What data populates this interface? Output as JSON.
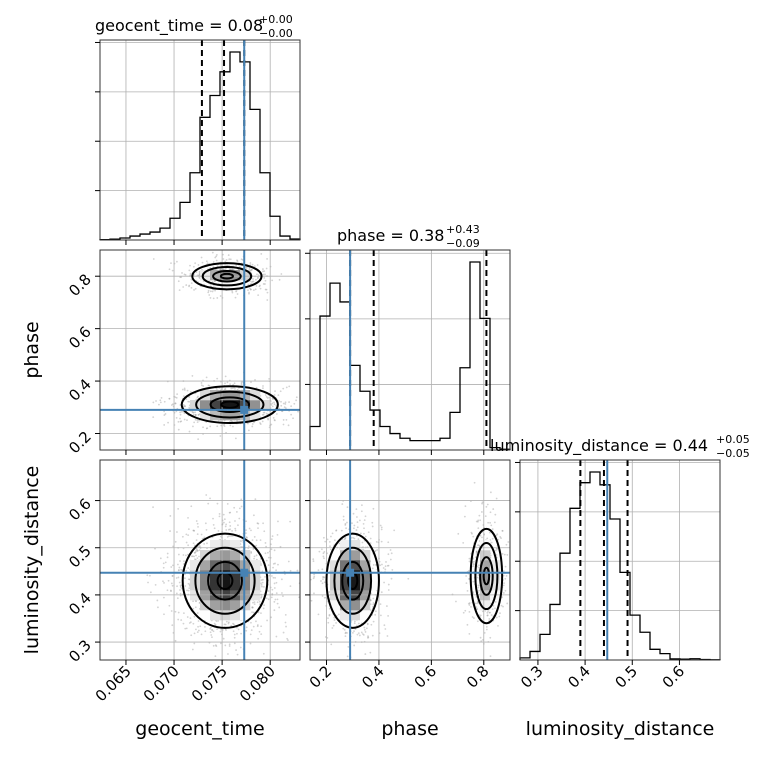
{
  "chart_data": {
    "type": "corner",
    "parameters": [
      "geocent_time",
      "phase",
      "luminosity_distance"
    ],
    "ranges": {
      "geocent_time": [
        0.0623,
        0.0831
      ],
      "phase": [
        0.137,
        0.9
      ],
      "luminosity_distance": [
        0.262,
        0.686
      ]
    },
    "truth": {
      "geocent_time": 0.0773,
      "phase": 0.29,
      "luminosity_distance": 0.447
    },
    "quantiles": {
      "geocent_time": [
        0.0729,
        0.0752,
        0.0773
      ],
      "phase": [
        0.29,
        0.38,
        0.81
      ],
      "luminosity_distance": [
        0.39,
        0.44,
        0.49
      ]
    },
    "titles": {
      "geocent_time": {
        "param": "geocent_time",
        "median": "0.08",
        "plus": "+0.00",
        "minus": "−0.00"
      },
      "phase": {
        "param": "phase",
        "median": "0.38",
        "plus": "+0.43",
        "minus": "−0.09"
      },
      "luminosity_distance": {
        "param": "luminosity_distance",
        "median": "0.44",
        "plus": "+0.05",
        "minus": "−0.05"
      }
    },
    "ticks": {
      "geocent_time": [
        0.065,
        0.07,
        0.075,
        0.08
      ],
      "phase": [
        0.2,
        0.4,
        0.6,
        0.8
      ],
      "luminosity_distance": [
        0.3,
        0.4,
        0.5,
        0.6
      ]
    },
    "tick_labels": {
      "geocent_time": [
        "0.065",
        "0.070",
        "0.075",
        "0.080"
      ],
      "phase_x": [
        "0.2",
        "0.4",
        "0.6",
        "0.8"
      ],
      "phase_y": [
        "0.2",
        "0.4",
        "0.6",
        "0.8"
      ],
      "luminosity_distance_x": [
        "0.3",
        "0.4",
        "0.5",
        "0.6"
      ],
      "luminosity_distance_y": [
        "0.3",
        "0.4",
        "0.5",
        "0.6"
      ]
    },
    "histograms": {
      "geocent_time": {
        "bins": 20,
        "counts": [
          0.002,
          0.004,
          0.01,
          0.02,
          0.03,
          0.04,
          0.06,
          0.11,
          0.19,
          0.34,
          0.62,
          0.73,
          0.85,
          0.95,
          0.9,
          0.66,
          0.34,
          0.12,
          0.02,
          0.005
        ]
      },
      "phase": {
        "bins": 20,
        "counts": [
          0.1,
          0.57,
          0.71,
          0.63,
          0.36,
          0.25,
          0.17,
          0.1,
          0.07,
          0.05,
          0.04,
          0.04,
          0.04,
          0.05,
          0.16,
          0.35,
          0.8,
          0.56,
          0.01,
          0.003
        ]
      },
      "luminosity_distance": {
        "bins": 20,
        "counts": [
          0.01,
          0.04,
          0.12,
          0.26,
          0.5,
          0.71,
          0.83,
          0.88,
          0.82,
          0.66,
          0.41,
          0.21,
          0.13,
          0.05,
          0.03,
          0.005,
          0.004,
          0.006,
          0.002,
          0.001
        ]
      }
    },
    "density_2d": {
      "phase_vs_geocent_time": {
        "modes": [
          {
            "x": 0.0755,
            "y": 0.8,
            "sx": 0.0018,
            "sy": 0.025,
            "weight": 0.35
          },
          {
            "x": 0.0758,
            "y": 0.31,
            "sx": 0.0025,
            "sy": 0.035,
            "weight": 0.55
          }
        ]
      },
      "luminosity_distance_vs_geocent_time": {
        "modes": [
          {
            "x": 0.0753,
            "y": 0.43,
            "sx": 0.0022,
            "sy": 0.05,
            "weight": 1.0
          }
        ]
      },
      "luminosity_distance_vs_phase": {
        "modes": [
          {
            "x": 0.3,
            "y": 0.43,
            "sx": 0.05,
            "sy": 0.05,
            "weight": 0.6
          },
          {
            "x": 0.81,
            "y": 0.44,
            "sx": 0.03,
            "sy": 0.05,
            "weight": 0.35
          }
        ]
      }
    },
    "axis_labels": {
      "x": [
        "geocent_time",
        "phase",
        "luminosity_distance"
      ],
      "y": [
        "phase",
        "luminosity_distance"
      ]
    },
    "grid": true,
    "colors": {
      "truth": "#4682b4",
      "hist": "#000000",
      "contour": "#000000"
    }
  }
}
